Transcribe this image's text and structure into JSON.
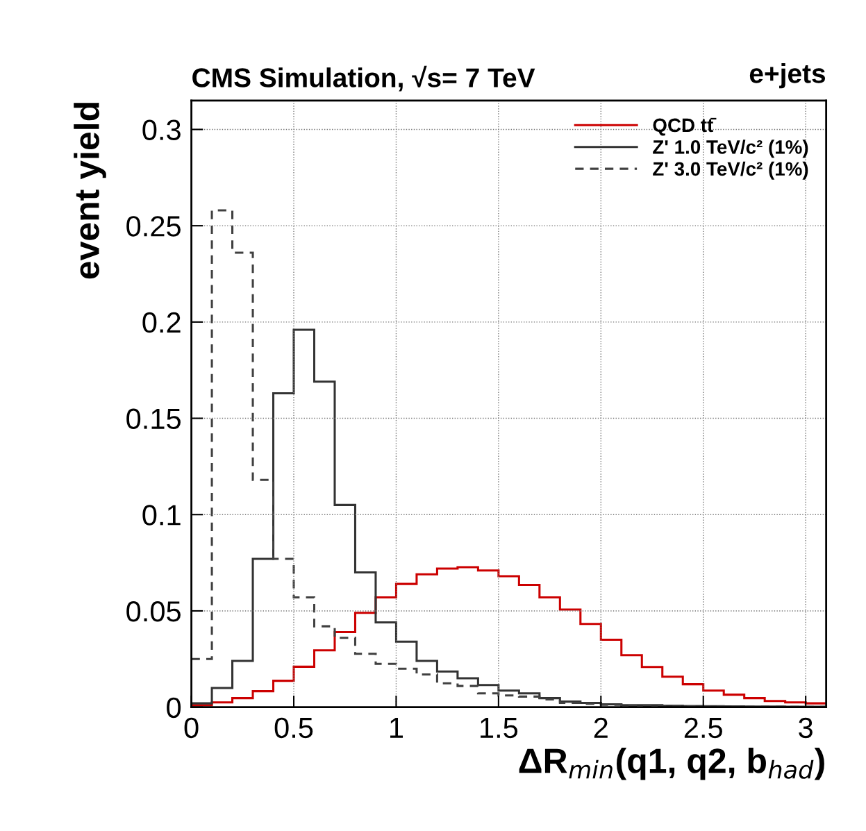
{
  "chart_data": {
    "type": "histogram",
    "title": "CMS Simulation, √s= 7 TeV",
    "xlabel": "ΔR$_{min}$(q1, q2, b$_{had}$)",
    "ylabel": "event yield",
    "annotations": [
      "e+jets"
    ],
    "bins": [
      0,
      0.1,
      0.2,
      0.3,
      0.4,
      0.5,
      0.6,
      0.7,
      0.8,
      0.9,
      1,
      1.1,
      1.2,
      1.3,
      1.4,
      1.5,
      1.6,
      1.7,
      1.8,
      1.9,
      2,
      2.1,
      2.2,
      2.3,
      2.4,
      2.5,
      2.6,
      2.7,
      2.8,
      2.9,
      3,
      3.1
    ],
    "series": [
      {
        "name": "QCD tt̄",
        "color": "#cc0000",
        "line_style": "solid",
        "values": [
          0.001,
          0.0025,
          0.0047,
          0.0083,
          0.0137,
          0.021,
          0.0295,
          0.039,
          0.049,
          0.057,
          0.064,
          0.069,
          0.072,
          0.0727,
          0.071,
          0.068,
          0.0635,
          0.057,
          0.0507,
          0.0432,
          0.035,
          0.027,
          0.0209,
          0.0158,
          0.0119,
          0.0086,
          0.0065,
          0.0047,
          0.0032,
          0.0025,
          0.002
        ]
      },
      {
        "name": "Z' 1.0 TeV/c² (1%)",
        "color": "#333333",
        "line_style": "solid",
        "values": [
          0.002,
          0.01,
          0.024,
          0.077,
          0.163,
          0.196,
          0.169,
          0.105,
          0.07,
          0.044,
          0.034,
          0.024,
          0.0185,
          0.015,
          0.0115,
          0.0086,
          0.0072,
          0.0047,
          0.0029,
          0.0022,
          0.0015,
          0.001,
          0.001,
          0.0008,
          0.0006,
          0.0005,
          0.0004,
          0.0003,
          0.0003,
          0.0002,
          0.0002
        ]
      },
      {
        "name": "Z' 3.0 TeV/c² (1%)",
        "color": "#404040",
        "line_style": "dashed",
        "values": [
          0.025,
          0.258,
          0.236,
          0.118,
          0.077,
          0.057,
          0.042,
          0.036,
          0.0277,
          0.0225,
          0.02,
          0.017,
          0.0124,
          0.011,
          0.0072,
          0.0061,
          0.0055,
          0.004,
          0.0022,
          0.0018,
          0.0012,
          0.0008,
          0.0006,
          0.0005,
          0.0004,
          0.0003,
          0.0003,
          0.0002,
          0.0002,
          0.0001,
          0.0001
        ]
      }
    ],
    "xlim": [
      0,
      3.1
    ],
    "ylim": [
      0,
      0.315
    ],
    "xticks": [
      0,
      0.5,
      1,
      1.5,
      2,
      2.5,
      3
    ],
    "yticks": [
      0,
      0.05,
      0.1,
      0.15,
      0.2,
      0.25,
      0.3
    ],
    "grid": true,
    "legend": "top right"
  }
}
